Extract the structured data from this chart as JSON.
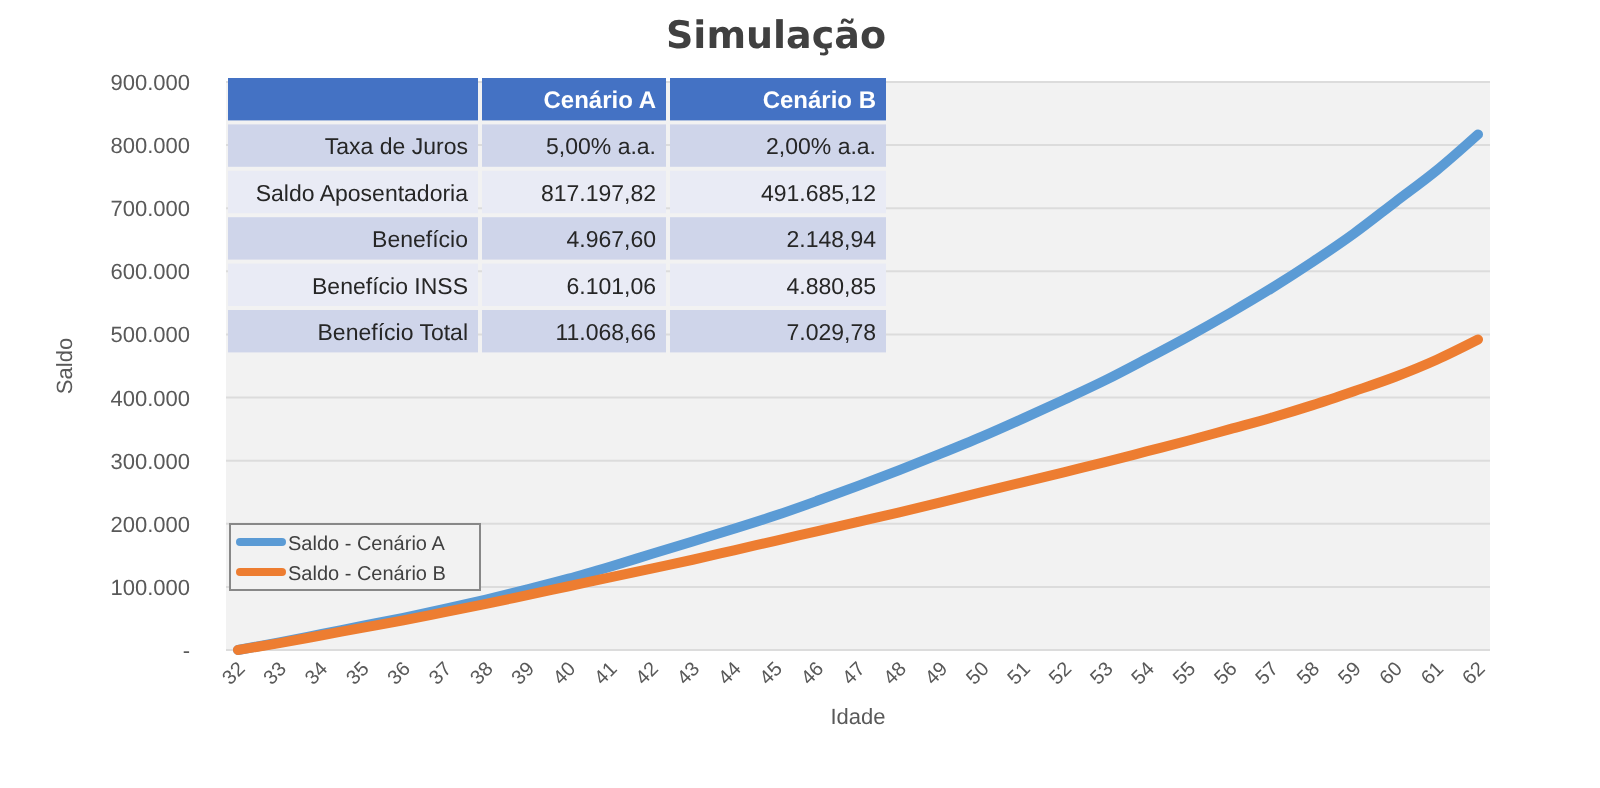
{
  "chart_data": {
    "type": "line",
    "title": "Simulação",
    "xlabel": "Idade",
    "ylabel": "Saldo",
    "categories": [
      "32",
      "33",
      "34",
      "35",
      "36",
      "37",
      "38",
      "39",
      "40",
      "41",
      "42",
      "43",
      "44",
      "45",
      "46",
      "47",
      "48",
      "49",
      "50",
      "51",
      "52",
      "53",
      "54",
      "55",
      "56",
      "57",
      "58",
      "59",
      "60",
      "61",
      "62"
    ],
    "series": [
      {
        "name": "Saldo - Cenário A",
        "color": "#5b9bd5",
        "values": [
          0,
          12000,
          25000,
          38000,
          51000,
          65000,
          80000,
          96000,
          113000,
          132000,
          152000,
          172000,
          192000,
          213000,
          236000,
          260000,
          285000,
          311000,
          338000,
          367000,
          397000,
          428000,
          462000,
          497000,
          534000,
          573000,
          615000,
          660000,
          710000,
          760000,
          817000
        ]
      },
      {
        "name": "Saldo - Cenário B",
        "color": "#ed7d31",
        "values": [
          0,
          11000,
          23000,
          35000,
          47000,
          60000,
          73000,
          87000,
          101000,
          115000,
          129000,
          143000,
          158000,
          173000,
          188000,
          203000,
          218000,
          234000,
          250000,
          266000,
          282000,
          298000,
          315000,
          332000,
          350000,
          368000,
          388000,
          410000,
          433000,
          460000,
          492000
        ]
      }
    ],
    "ylim": [
      0,
      900000
    ],
    "yticks": [
      {
        "value": 0,
        "label": "-"
      },
      {
        "value": 100000,
        "label": "100.000"
      },
      {
        "value": 200000,
        "label": "200.000"
      },
      {
        "value": 300000,
        "label": "300.000"
      },
      {
        "value": 400000,
        "label": "400.000"
      },
      {
        "value": 500000,
        "label": "500.000"
      },
      {
        "value": 600000,
        "label": "600.000"
      },
      {
        "value": 700000,
        "label": "700.000"
      },
      {
        "value": 800000,
        "label": "800.000"
      },
      {
        "value": 900000,
        "label": "900.000"
      }
    ],
    "grid": "y",
    "legend": "bottom left",
    "line_style": "solid",
    "marker": "none",
    "annotations": [
      "Cenário A",
      "Cenário B",
      "Taxa de Juros",
      "5,00% a.a.",
      "2,00% a.a.",
      "Saldo Aposentadoria",
      "817.197,82",
      "491.685,12",
      "Benefício",
      "4.967,60",
      "2.148,94",
      "Benefício INSS",
      "6.101,06",
      "4.880,85",
      "Benefício Total",
      "11.068,66",
      "7.029,78"
    ]
  }
}
